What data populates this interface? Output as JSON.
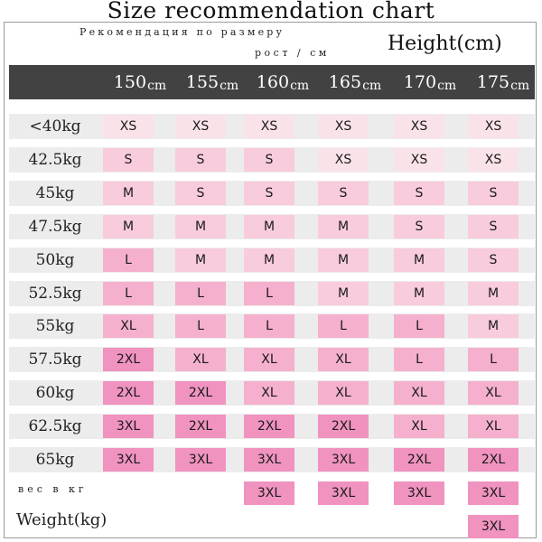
{
  "title": "Size recommendation chart",
  "russian_subtitle": "Рекомендация по размеру",
  "russian_unit": "рост / см",
  "height_label": "Height(cm)",
  "unit": "cm",
  "heights": [
    "150",
    "155",
    "160",
    "165",
    "170",
    "175"
  ],
  "rows": [
    {
      "weight": "<40kg",
      "sizes": [
        "XS",
        "XS",
        "XS",
        "XS",
        "XS",
        "XS"
      ]
    },
    {
      "weight": "42.5kg",
      "sizes": [
        "S",
        "S",
        "S",
        "XS",
        "XS",
        "XS"
      ]
    },
    {
      "weight": "45kg",
      "sizes": [
        "M",
        "S",
        "S",
        "S",
        "S",
        "S"
      ]
    },
    {
      "weight": "47.5kg",
      "sizes": [
        "M",
        "M",
        "M",
        "M",
        "S",
        "S"
      ]
    },
    {
      "weight": "50kg",
      "sizes": [
        "L",
        "M",
        "M",
        "M",
        "M",
        "S"
      ]
    },
    {
      "weight": "52.5kg",
      "sizes": [
        "L",
        "L",
        "L",
        "M",
        "M",
        "M"
      ]
    },
    {
      "weight": "55kg",
      "sizes": [
        "XL",
        "L",
        "L",
        "L",
        "L",
        "M"
      ]
    },
    {
      "weight": "57.5kg",
      "sizes": [
        "2XL",
        "XL",
        "XL",
        "XL",
        "L",
        "L"
      ]
    },
    {
      "weight": "60kg",
      "sizes": [
        "2XL",
        "2XL",
        "XL",
        "XL",
        "XL",
        "XL"
      ]
    },
    {
      "weight": "62.5kg",
      "sizes": [
        "3XL",
        "2XL",
        "2XL",
        "2XL",
        "XL",
        "XL"
      ]
    },
    {
      "weight": "65kg",
      "sizes": [
        "3XL",
        "3XL",
        "3XL",
        "3XL",
        "2XL",
        "2XL"
      ]
    },
    {
      "weight": "",
      "sizes": [
        "",
        "",
        "3XL",
        "3XL",
        "3XL",
        "3XL"
      ]
    },
    {
      "weight": "",
      "sizes": [
        "",
        "",
        "",
        "",
        "",
        "3XL"
      ]
    }
  ],
  "footer_russian": "вес в кг",
  "footer_weight_label": "Weight(kg)",
  "colors": {
    "header_bg": "#424242",
    "row_bg": "#ececec",
    "XS": "#fae2e9",
    "S": "#f8cbdd",
    "M": "#f8cbdd",
    "L": "#f5b0cd",
    "XL": "#f5b0cd",
    "2XL": "#f093bf",
    "3XL": "#f093bf"
  }
}
